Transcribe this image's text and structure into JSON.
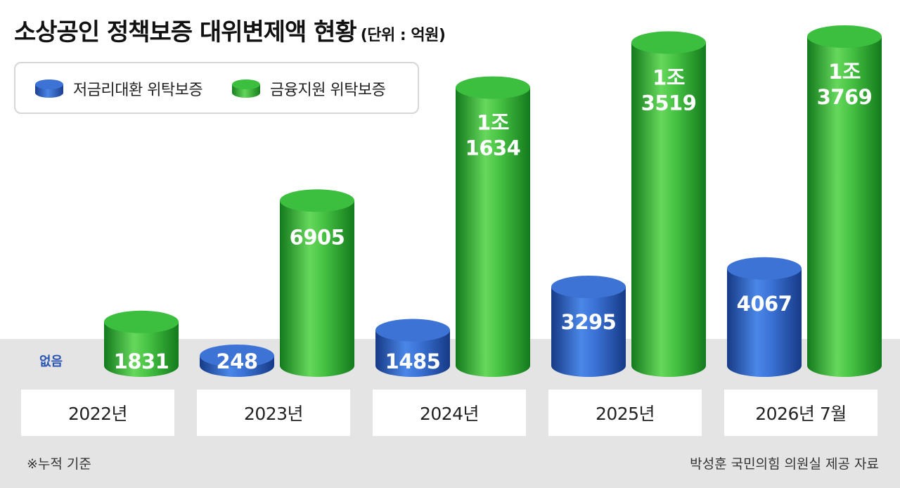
{
  "title": "소상공인 정책보증 대위변제액 현황",
  "unit": "(단위 : 억원)",
  "legend": [
    {
      "label": "저금리대환 위탁보증",
      "color": "#2c5fc1"
    },
    {
      "label": "금융지원 위탁보증",
      "color": "#2fae3c"
    }
  ],
  "none_label": "없음",
  "footnote": "※누적 기준",
  "source": "박성훈 국민의힘 의원실 제공 자료",
  "chart_data": {
    "type": "bar",
    "categories": [
      "2022년",
      "2023년",
      "2024년",
      "2025년",
      "2026년 7월"
    ],
    "series": [
      {
        "name": "저금리대환 위탁보증",
        "values": [
          null,
          248,
          1485,
          3295,
          4067
        ],
        "labels": [
          "",
          "248",
          "1485",
          "3295",
          "4067"
        ],
        "color": "#2c5fc1"
      },
      {
        "name": "금융지원 위탁보증",
        "values": [
          1831,
          6905,
          11634,
          13519,
          13769
        ],
        "labels": [
          "1831",
          "6905",
          "1조\n1634",
          "1조\n3519",
          "1조\n3769"
        ],
        "color": "#2fae3c"
      }
    ],
    "title": "소상공인 정책보증 대위변제액 현황",
    "ylabel": "",
    "xlabel": ""
  }
}
